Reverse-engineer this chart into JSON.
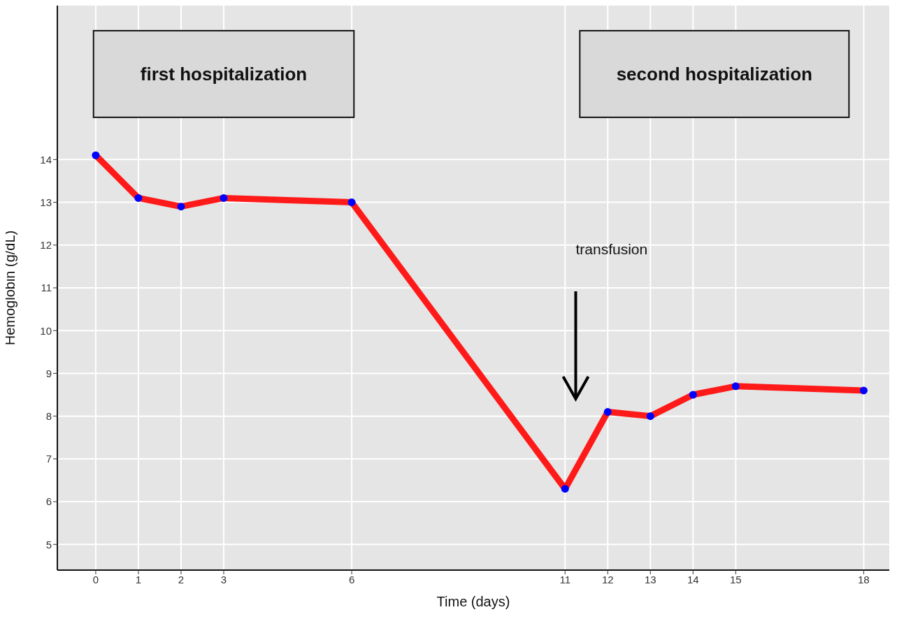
{
  "chart_data": {
    "type": "line",
    "xlabel": "Time (days)",
    "ylabel": "Hemoglobin (g/dL)",
    "x": [
      0,
      1,
      2,
      3,
      6,
      11,
      12,
      13,
      14,
      15,
      18
    ],
    "series": [
      {
        "color": "#ff1a1a",
        "marker": "none",
        "values": [
          14.1,
          13.1,
          12.9,
          13.1,
          13.0,
          6.3,
          8.1,
          8.0,
          8.5,
          8.7,
          8.6
        ]
      },
      {
        "type": "scatter",
        "color": "#0000ff",
        "values": [
          14.1,
          13.1,
          12.9,
          13.1,
          13.0,
          6.3,
          8.1,
          8.0,
          8.5,
          8.7,
          8.6
        ]
      }
    ],
    "xlim": [
      -0.9,
      18.6
    ],
    "xticks": [
      0,
      1,
      2,
      3,
      6,
      11,
      12,
      13,
      14,
      15,
      18
    ],
    "ylim": [
      4.4,
      17.6
    ],
    "yticks": [
      5,
      6,
      7,
      8,
      9,
      10,
      11,
      12,
      13,
      14
    ],
    "grid": true,
    "line_style": "solid",
    "annotations": [
      "first hospitalization",
      "second hospitalization",
      "transfusion"
    ]
  }
}
